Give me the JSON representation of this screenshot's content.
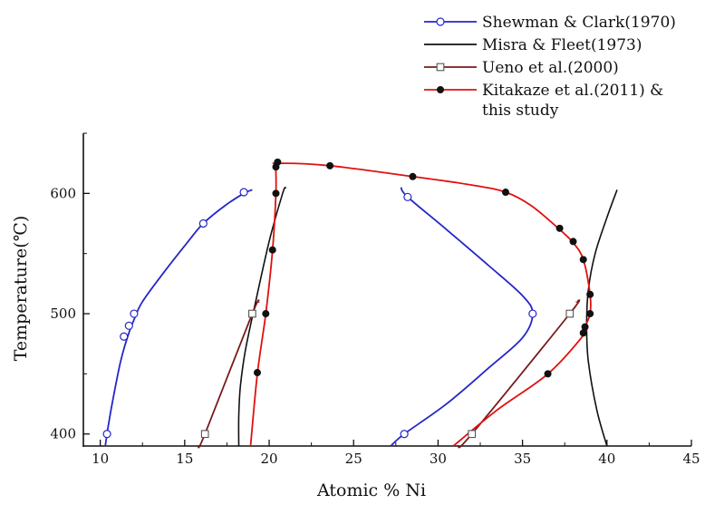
{
  "chart_data": {
    "type": "line",
    "title": "",
    "xlabel": "Atomic % Ni",
    "ylabel": "Temperature(℃)",
    "xlim": [
      9,
      45
    ],
    "ylim": [
      390,
      650
    ],
    "x_ticks": [
      {
        "value": 10,
        "label": "10"
      },
      {
        "value": 15,
        "label": "15"
      },
      {
        "value": 20,
        "label": "20"
      },
      {
        "value": 25,
        "label": "25"
      },
      {
        "value": 30,
        "label": "30"
      },
      {
        "value": 35,
        "label": "35"
      },
      {
        "value": 40,
        "label": "40"
      },
      {
        "value": 45,
        "label": "45"
      }
    ],
    "y_ticks": [
      {
        "value": 400,
        "label": "400"
      },
      {
        "value": 500,
        "label": "500"
      },
      {
        "value": 600,
        "label": "600"
      }
    ],
    "grid": false,
    "legend_position": "top-right",
    "legend": [
      {
        "label": "Shewman & Clark(1970)",
        "color": "#2626c8",
        "marker": "open-circle"
      },
      {
        "label": "Misra & Fleet(1973)",
        "color": "#111111",
        "marker": "none"
      },
      {
        "label": "Ueno et al.(2000)",
        "color": "#7a1a1a",
        "marker": "open-square"
      },
      {
        "label": "Kitakaze et al.(2011) & this study",
        "label_lines": [
          "Kitakaze et al.(2011) &",
          "this study"
        ],
        "color": "#e01010",
        "marker": "filled-circle"
      }
    ],
    "series": [
      {
        "name": "Shewman & Clark(1970)",
        "color": "#2626c8",
        "marker": "open-circle",
        "curves": [
          {
            "path": [
              [
                10.3,
                390
              ],
              [
                10.4,
                400
              ],
              [
                10.7,
                425
              ],
              [
                11.2,
                460
              ],
              [
                11.6,
                480
              ],
              [
                12.0,
                495
              ],
              [
                12.5,
                510
              ],
              [
                13.8,
                535
              ],
              [
                15.2,
                560
              ],
              [
                16.1,
                575
              ],
              [
                17.4,
                590
              ],
              [
                18.5,
                600
              ],
              [
                19.0,
                603
              ]
            ],
            "points": [
              [
                10.4,
                400
              ],
              [
                11.4,
                481
              ],
              [
                11.7,
                490
              ],
              [
                12.0,
                500
              ],
              [
                16.1,
                575
              ],
              [
                18.5,
                601
              ]
            ]
          },
          {
            "path": [
              [
                27.2,
                390
              ],
              [
                28.0,
                400
              ],
              [
                30.5,
                425
              ],
              [
                33.0,
                455
              ],
              [
                35.0,
                480
              ],
              [
                35.6,
                500
              ],
              [
                35.0,
                515
              ],
              [
                33.0,
                540
              ],
              [
                30.5,
                570
              ],
              [
                28.2,
                597
              ],
              [
                27.8,
                605
              ]
            ],
            "points": [
              [
                28.0,
                400
              ],
              [
                35.6,
                500
              ],
              [
                28.2,
                597
              ]
            ]
          }
        ]
      },
      {
        "name": "Misra & Fleet(1973)",
        "color": "#111111",
        "marker": "none",
        "curves": [
          {
            "path": [
              [
                18.2,
                390
              ],
              [
                18.2,
                415
              ],
              [
                18.3,
                440
              ],
              [
                18.6,
                470
              ],
              [
                19.2,
                510
              ],
              [
                20.0,
                560
              ],
              [
                20.8,
                600
              ],
              [
                21.0,
                605
              ]
            ],
            "points": []
          },
          {
            "path": [
              [
                40.0,
                390
              ],
              [
                39.4,
                420
              ],
              [
                38.9,
                460
              ],
              [
                38.8,
                490
              ],
              [
                38.9,
                520
              ],
              [
                39.3,
                550
              ],
              [
                40.0,
                580
              ],
              [
                40.6,
                603
              ]
            ],
            "points": []
          }
        ]
      },
      {
        "name": "Ueno et al.(2000)",
        "color": "#7a1a1a",
        "marker": "open-square",
        "curves": [
          {
            "path": [
              [
                15.8,
                390
              ],
              [
                16.2,
                400
              ],
              [
                19.0,
                500
              ],
              [
                19.4,
                510
              ]
            ],
            "points": [
              [
                16.2,
                400
              ],
              [
                19.0,
                500
              ]
            ]
          },
          {
            "path": [
              [
                31.2,
                390
              ],
              [
                32.0,
                400
              ],
              [
                37.8,
                500
              ],
              [
                38.2,
                510
              ]
            ],
            "points": [
              [
                32.0,
                400
              ],
              [
                37.8,
                500
              ]
            ]
          }
        ]
      },
      {
        "name": "Kitakaze et al.(2011) & this study",
        "color": "#e01010",
        "marker": "filled-circle",
        "curves": [
          {
            "path": [
              [
                18.9,
                390
              ],
              [
                19.3,
                450
              ],
              [
                19.8,
                500
              ],
              [
                20.2,
                553
              ],
              [
                20.4,
                600
              ],
              [
                20.4,
                622
              ],
              [
                20.5,
                625
              ],
              [
                23.6,
                623
              ],
              [
                28.5,
                614
              ],
              [
                32.0,
                607
              ],
              [
                34.0,
                601
              ],
              [
                35.5,
                590
              ],
              [
                37.2,
                570
              ],
              [
                38.0,
                559
              ],
              [
                38.6,
                545
              ],
              [
                39.0,
                516
              ],
              [
                39.0,
                500
              ],
              [
                38.7,
                489
              ],
              [
                38.6,
                482
              ],
              [
                36.5,
                450
              ],
              [
                33.5,
                420
              ],
              [
                30.9,
                390
              ]
            ],
            "points": [
              [
                19.3,
                451
              ],
              [
                19.8,
                500
              ],
              [
                20.2,
                553
              ],
              [
                20.4,
                600
              ],
              [
                20.4,
                622
              ],
              [
                20.5,
                626
              ],
              [
                23.6,
                623
              ],
              [
                28.5,
                614
              ],
              [
                34.0,
                601
              ],
              [
                37.2,
                571
              ],
              [
                38.0,
                560
              ],
              [
                38.6,
                545
              ],
              [
                39.0,
                516
              ],
              [
                39.0,
                500
              ],
              [
                38.7,
                489
              ],
              [
                38.6,
                484
              ],
              [
                36.5,
                450
              ]
            ]
          }
        ]
      }
    ]
  }
}
